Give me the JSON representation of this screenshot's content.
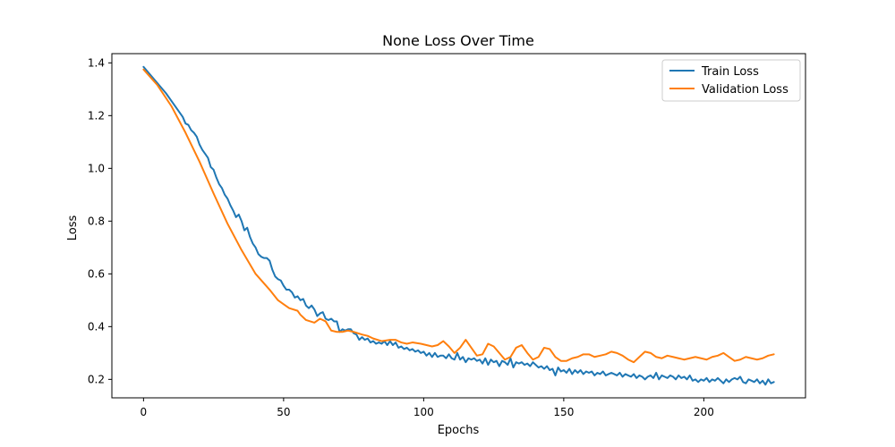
{
  "chart_data": {
    "type": "line",
    "title": "None Loss Over Time",
    "xlabel": "Epochs",
    "ylabel": "Loss",
    "xlim": [
      -11.3,
      236.3
    ],
    "ylim": [
      0.13,
      1.435
    ],
    "xticks": [
      0,
      50,
      100,
      150,
      200
    ],
    "yticks": [
      0.2,
      0.4,
      0.6,
      0.8,
      1.0,
      1.2,
      1.4
    ],
    "ytick_labels": [
      "0.2",
      "0.4",
      "0.6",
      "0.8",
      "1.0",
      "1.2",
      "1.4"
    ],
    "grid": false,
    "legend_position": "top-right",
    "series": [
      {
        "name": "Train Loss",
        "color": "#1f77b4",
        "points": [
          [
            0,
            1.385
          ],
          [
            2,
            1.36
          ],
          [
            4,
            1.335
          ],
          [
            6,
            1.31
          ],
          [
            8,
            1.285
          ],
          [
            10,
            1.255
          ],
          [
            12,
            1.225
          ],
          [
            14,
            1.195
          ],
          [
            15,
            1.17
          ],
          [
            16,
            1.165
          ],
          [
            17,
            1.145
          ],
          [
            18,
            1.135
          ],
          [
            19,
            1.12
          ],
          [
            20,
            1.09
          ],
          [
            21,
            1.07
          ],
          [
            22,
            1.055
          ],
          [
            23,
            1.04
          ],
          [
            24,
            1.005
          ],
          [
            25,
            0.995
          ],
          [
            26,
            0.965
          ],
          [
            27,
            0.94
          ],
          [
            28,
            0.925
          ],
          [
            29,
            0.9
          ],
          [
            30,
            0.885
          ],
          [
            31,
            0.86
          ],
          [
            32,
            0.84
          ],
          [
            33,
            0.815
          ],
          [
            34,
            0.825
          ],
          [
            35,
            0.8
          ],
          [
            36,
            0.765
          ],
          [
            37,
            0.775
          ],
          [
            38,
            0.74
          ],
          [
            39,
            0.715
          ],
          [
            40,
            0.7
          ],
          [
            41,
            0.675
          ],
          [
            42,
            0.665
          ],
          [
            43,
            0.66
          ],
          [
            44,
            0.66
          ],
          [
            45,
            0.65
          ],
          [
            46,
            0.615
          ],
          [
            47,
            0.59
          ],
          [
            48,
            0.58
          ],
          [
            49,
            0.575
          ],
          [
            50,
            0.555
          ],
          [
            51,
            0.54
          ],
          [
            52,
            0.54
          ],
          [
            53,
            0.53
          ],
          [
            54,
            0.51
          ],
          [
            55,
            0.515
          ],
          [
            56,
            0.5
          ],
          [
            57,
            0.505
          ],
          [
            58,
            0.48
          ],
          [
            59,
            0.47
          ],
          [
            60,
            0.48
          ],
          [
            61,
            0.465
          ],
          [
            62,
            0.44
          ],
          [
            63,
            0.45
          ],
          [
            64,
            0.455
          ],
          [
            65,
            0.43
          ],
          [
            66,
            0.425
          ],
          [
            67,
            0.43
          ],
          [
            68,
            0.42
          ],
          [
            69,
            0.42
          ],
          [
            70,
            0.38
          ],
          [
            71,
            0.39
          ],
          [
            72,
            0.385
          ],
          [
            73,
            0.39
          ],
          [
            74,
            0.39
          ],
          [
            75,
            0.375
          ],
          [
            76,
            0.37
          ],
          [
            77,
            0.35
          ],
          [
            78,
            0.36
          ],
          [
            79,
            0.35
          ],
          [
            80,
            0.355
          ],
          [
            81,
            0.34
          ],
          [
            82,
            0.345
          ],
          [
            83,
            0.335
          ],
          [
            84,
            0.34
          ],
          [
            85,
            0.335
          ],
          [
            86,
            0.345
          ],
          [
            87,
            0.33
          ],
          [
            88,
            0.345
          ],
          [
            89,
            0.33
          ],
          [
            90,
            0.34
          ],
          [
            91,
            0.32
          ],
          [
            92,
            0.325
          ],
          [
            93,
            0.315
          ],
          [
            94,
            0.32
          ],
          [
            95,
            0.31
          ],
          [
            96,
            0.315
          ],
          [
            97,
            0.305
          ],
          [
            98,
            0.31
          ],
          [
            99,
            0.3
          ],
          [
            100,
            0.305
          ],
          [
            101,
            0.29
          ],
          [
            102,
            0.3
          ],
          [
            103,
            0.285
          ],
          [
            104,
            0.3
          ],
          [
            105,
            0.285
          ],
          [
            106,
            0.29
          ],
          [
            107,
            0.29
          ],
          [
            108,
            0.28
          ],
          [
            109,
            0.295
          ],
          [
            110,
            0.28
          ],
          [
            111,
            0.275
          ],
          [
            112,
            0.3
          ],
          [
            113,
            0.275
          ],
          [
            114,
            0.285
          ],
          [
            115,
            0.265
          ],
          [
            116,
            0.28
          ],
          [
            117,
            0.275
          ],
          [
            118,
            0.28
          ],
          [
            119,
            0.27
          ],
          [
            120,
            0.275
          ],
          [
            121,
            0.26
          ],
          [
            122,
            0.28
          ],
          [
            123,
            0.255
          ],
          [
            124,
            0.275
          ],
          [
            125,
            0.265
          ],
          [
            126,
            0.27
          ],
          [
            127,
            0.25
          ],
          [
            128,
            0.27
          ],
          [
            129,
            0.265
          ],
          [
            130,
            0.255
          ],
          [
            131,
            0.28
          ],
          [
            132,
            0.245
          ],
          [
            133,
            0.265
          ],
          [
            134,
            0.26
          ],
          [
            135,
            0.265
          ],
          [
            136,
            0.255
          ],
          [
            137,
            0.26
          ],
          [
            138,
            0.25
          ],
          [
            139,
            0.265
          ],
          [
            140,
            0.255
          ],
          [
            141,
            0.245
          ],
          [
            142,
            0.25
          ],
          [
            143,
            0.24
          ],
          [
            144,
            0.25
          ],
          [
            145,
            0.235
          ],
          [
            146,
            0.24
          ],
          [
            147,
            0.215
          ],
          [
            148,
            0.245
          ],
          [
            149,
            0.23
          ],
          [
            150,
            0.235
          ],
          [
            151,
            0.225
          ],
          [
            152,
            0.24
          ],
          [
            153,
            0.22
          ],
          [
            154,
            0.235
          ],
          [
            155,
            0.225
          ],
          [
            156,
            0.235
          ],
          [
            157,
            0.22
          ],
          [
            158,
            0.23
          ],
          [
            159,
            0.225
          ],
          [
            160,
            0.23
          ],
          [
            161,
            0.215
          ],
          [
            162,
            0.225
          ],
          [
            163,
            0.22
          ],
          [
            164,
            0.23
          ],
          [
            165,
            0.215
          ],
          [
            166,
            0.22
          ],
          [
            167,
            0.225
          ],
          [
            168,
            0.22
          ],
          [
            169,
            0.215
          ],
          [
            170,
            0.225
          ],
          [
            171,
            0.21
          ],
          [
            172,
            0.22
          ],
          [
            173,
            0.215
          ],
          [
            174,
            0.21
          ],
          [
            175,
            0.22
          ],
          [
            176,
            0.205
          ],
          [
            177,
            0.215
          ],
          [
            178,
            0.21
          ],
          [
            179,
            0.2
          ],
          [
            180,
            0.21
          ],
          [
            181,
            0.215
          ],
          [
            182,
            0.205
          ],
          [
            183,
            0.225
          ],
          [
            184,
            0.2
          ],
          [
            185,
            0.215
          ],
          [
            186,
            0.21
          ],
          [
            187,
            0.205
          ],
          [
            188,
            0.215
          ],
          [
            189,
            0.21
          ],
          [
            190,
            0.2
          ],
          [
            191,
            0.215
          ],
          [
            192,
            0.205
          ],
          [
            193,
            0.21
          ],
          [
            194,
            0.2
          ],
          [
            195,
            0.215
          ],
          [
            196,
            0.195
          ],
          [
            197,
            0.2
          ],
          [
            198,
            0.19
          ],
          [
            199,
            0.2
          ],
          [
            200,
            0.195
          ],
          [
            201,
            0.205
          ],
          [
            202,
            0.19
          ],
          [
            203,
            0.2
          ],
          [
            204,
            0.195
          ],
          [
            205,
            0.205
          ],
          [
            206,
            0.195
          ],
          [
            207,
            0.185
          ],
          [
            208,
            0.2
          ],
          [
            209,
            0.19
          ],
          [
            210,
            0.2
          ],
          [
            211,
            0.205
          ],
          [
            212,
            0.2
          ],
          [
            213,
            0.21
          ],
          [
            214,
            0.19
          ],
          [
            215,
            0.185
          ],
          [
            216,
            0.2
          ],
          [
            217,
            0.195
          ],
          [
            218,
            0.19
          ],
          [
            219,
            0.2
          ],
          [
            220,
            0.185
          ],
          [
            221,
            0.195
          ],
          [
            222,
            0.18
          ],
          [
            223,
            0.2
          ],
          [
            224,
            0.185
          ],
          [
            225,
            0.19
          ]
        ]
      },
      {
        "name": "Validation Loss",
        "color": "#ff7f0e",
        "points": [
          [
            0,
            1.375
          ],
          [
            5,
            1.315
          ],
          [
            10,
            1.235
          ],
          [
            15,
            1.135
          ],
          [
            20,
            1.025
          ],
          [
            25,
            0.905
          ],
          [
            30,
            0.79
          ],
          [
            35,
            0.69
          ],
          [
            40,
            0.6
          ],
          [
            45,
            0.54
          ],
          [
            48,
            0.5
          ],
          [
            50,
            0.485
          ],
          [
            52,
            0.47
          ],
          [
            55,
            0.46
          ],
          [
            56,
            0.445
          ],
          [
            58,
            0.425
          ],
          [
            61,
            0.415
          ],
          [
            63,
            0.43
          ],
          [
            65,
            0.42
          ],
          [
            67,
            0.385
          ],
          [
            69,
            0.38
          ],
          [
            71,
            0.38
          ],
          [
            73,
            0.385
          ],
          [
            75,
            0.38
          ],
          [
            78,
            0.37
          ],
          [
            80,
            0.365
          ],
          [
            82,
            0.355
          ],
          [
            85,
            0.345
          ],
          [
            88,
            0.35
          ],
          [
            90,
            0.35
          ],
          [
            92,
            0.34
          ],
          [
            94,
            0.335
          ],
          [
            96,
            0.34
          ],
          [
            99,
            0.335
          ],
          [
            101,
            0.33
          ],
          [
            103,
            0.325
          ],
          [
            105,
            0.33
          ],
          [
            107,
            0.345
          ],
          [
            109,
            0.325
          ],
          [
            111,
            0.3
          ],
          [
            113,
            0.32
          ],
          [
            115,
            0.35
          ],
          [
            117,
            0.32
          ],
          [
            119,
            0.29
          ],
          [
            121,
            0.295
          ],
          [
            123,
            0.335
          ],
          [
            125,
            0.325
          ],
          [
            127,
            0.3
          ],
          [
            129,
            0.275
          ],
          [
            131,
            0.285
          ],
          [
            133,
            0.32
          ],
          [
            135,
            0.33
          ],
          [
            137,
            0.3
          ],
          [
            139,
            0.275
          ],
          [
            141,
            0.285
          ],
          [
            143,
            0.32
          ],
          [
            145,
            0.315
          ],
          [
            147,
            0.285
          ],
          [
            149,
            0.27
          ],
          [
            151,
            0.27
          ],
          [
            153,
            0.28
          ],
          [
            155,
            0.285
          ],
          [
            157,
            0.295
          ],
          [
            159,
            0.295
          ],
          [
            161,
            0.285
          ],
          [
            163,
            0.29
          ],
          [
            165,
            0.295
          ],
          [
            167,
            0.305
          ],
          [
            169,
            0.3
          ],
          [
            171,
            0.29
          ],
          [
            173,
            0.275
          ],
          [
            175,
            0.265
          ],
          [
            177,
            0.285
          ],
          [
            179,
            0.305
          ],
          [
            181,
            0.3
          ],
          [
            183,
            0.285
          ],
          [
            185,
            0.28
          ],
          [
            187,
            0.29
          ],
          [
            189,
            0.285
          ],
          [
            191,
            0.28
          ],
          [
            193,
            0.275
          ],
          [
            195,
            0.28
          ],
          [
            197,
            0.285
          ],
          [
            199,
            0.28
          ],
          [
            201,
            0.275
          ],
          [
            203,
            0.285
          ],
          [
            205,
            0.29
          ],
          [
            207,
            0.3
          ],
          [
            209,
            0.285
          ],
          [
            211,
            0.27
          ],
          [
            213,
            0.275
          ],
          [
            215,
            0.285
          ],
          [
            217,
            0.28
          ],
          [
            219,
            0.275
          ],
          [
            221,
            0.28
          ],
          [
            223,
            0.29
          ],
          [
            225,
            0.295
          ]
        ]
      }
    ]
  }
}
